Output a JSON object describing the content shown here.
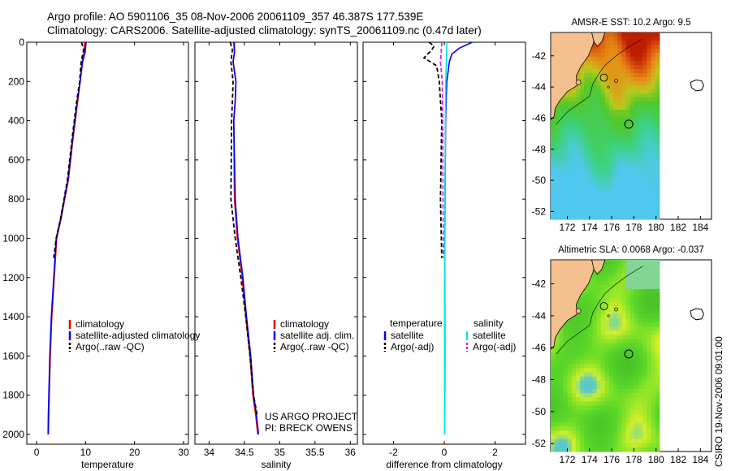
{
  "header": {
    "line1": "Argo profile: AO 5901106_35 08-Nov-2006 20061109_357 46.387S 177.539E",
    "line2": "Climatology: CARS2006. Satellite-adjusted climatology: synTS_20061109.nc (0.47d later)"
  },
  "side_label": "CSIRO 19-Nov-2006 09:01:00",
  "colors": {
    "red": "#e00000",
    "blue": "#0000ff",
    "black": "#000000",
    "cyan": "#00e5e5",
    "magenta": "#e020e0"
  },
  "chart_data": [
    {
      "id": "temperature",
      "type": "line",
      "title": "",
      "xlabel": "temperature",
      "ylabel": "",
      "xlim": [
        -2,
        31
      ],
      "ylim": [
        2050,
        0
      ],
      "xticks": [
        "0",
        "10",
        "20",
        "30"
      ],
      "yticks": [
        "0",
        "200",
        "400",
        "600",
        "800",
        "1000",
        "1200",
        "1400",
        "1600",
        "1800",
        "2000"
      ],
      "series": [
        {
          "name": "climatology",
          "color": "red",
          "dash": false,
          "x": [
            9.8,
            9.7,
            9.3,
            8.9,
            8.4,
            7.4,
            6.5,
            5.0,
            4.1,
            3.6,
            3.1,
            2.8,
            2.6,
            2.5,
            2.4
          ],
          "y": [
            0,
            50,
            100,
            200,
            300,
            500,
            700,
            900,
            1000,
            1200,
            1400,
            1600,
            1800,
            1900,
            2000
          ]
        },
        {
          "name": "satellite-adjusted climatology",
          "color": "blue",
          "dash": false,
          "x": [
            10.1,
            9.9,
            9.4,
            8.9,
            8.3,
            7.3,
            6.4,
            4.9,
            4.0,
            3.5,
            3.0,
            2.7,
            2.5,
            2.4,
            2.35
          ],
          "y": [
            0,
            50,
            100,
            200,
            300,
            500,
            700,
            900,
            1000,
            1200,
            1400,
            1600,
            1800,
            1900,
            2000
          ]
        },
        {
          "name": "Argo(..raw -QC)",
          "color": "black",
          "dash": true,
          "x": [
            9.2,
            9.6,
            9.1,
            8.8,
            8.2,
            7.2,
            6.3,
            4.9,
            4.0,
            3.5
          ],
          "y": [
            0,
            40,
            100,
            200,
            300,
            500,
            700,
            900,
            1000,
            1100
          ]
        }
      ],
      "legend": {
        "placement": "bottom-left",
        "entries": [
          "climatology",
          "satellite-adjusted climatology",
          "Argo(..raw -QC)"
        ]
      }
    },
    {
      "id": "salinity",
      "type": "line",
      "xlabel": "salinity",
      "xlim": [
        33.8,
        36.1
      ],
      "ylim": [
        2050,
        0
      ],
      "xticks": [
        "34",
        "34.5",
        "35",
        "35.5",
        "36"
      ],
      "yticks": [],
      "series": [
        {
          "name": "climatology",
          "color": "red",
          "dash": false,
          "x": [
            34.36,
            34.36,
            34.34,
            34.38,
            34.37,
            34.35,
            34.36,
            34.4,
            34.47,
            34.52,
            34.58,
            34.62,
            34.66,
            34.69
          ],
          "y": [
            0,
            50,
            100,
            200,
            300,
            400,
            800,
            1000,
            1200,
            1400,
            1600,
            1800,
            1900,
            2000
          ]
        },
        {
          "name": "satellite adj. clim.",
          "color": "blue",
          "dash": false,
          "x": [
            34.35,
            34.36,
            34.34,
            34.38,
            34.37,
            34.35,
            34.37,
            34.41,
            34.48,
            34.53,
            34.59,
            34.63,
            34.67,
            34.7
          ],
          "y": [
            0,
            50,
            100,
            200,
            300,
            400,
            800,
            1000,
            1200,
            1400,
            1600,
            1800,
            1900,
            2000
          ]
        },
        {
          "name": "Argo(..raw -QC)",
          "color": "black",
          "dash": true,
          "x": [
            34.3,
            34.33,
            34.31,
            34.34,
            34.33,
            34.32,
            34.31,
            34.37,
            34.45,
            34.52,
            34.58,
            34.63,
            34.68
          ],
          "y": [
            0,
            40,
            100,
            200,
            300,
            400,
            800,
            1000,
            1200,
            1400,
            1600,
            1800,
            1900
          ]
        }
      ],
      "legend": {
        "placement": "bottom-left",
        "entries": [
          "climatology",
          "satellite adj. clim.",
          "Argo(..raw -QC)"
        ]
      },
      "annotations": [
        "US ARGO PROJECT",
        "PI: BRECK OWENS"
      ]
    },
    {
      "id": "difference",
      "type": "line",
      "xlabel": "difference from climatology",
      "xlim": [
        -3.2,
        3.2
      ],
      "ylim": [
        2050,
        0
      ],
      "xticks": [
        "-2",
        "0",
        "2"
      ],
      "yticks": [],
      "series": [
        {
          "name": "temperature satellite",
          "color": "blue",
          "dash": false,
          "x": [
            1.1,
            0.6,
            0.3,
            0.2,
            0.1,
            0.05,
            0.03,
            0.02,
            0.02,
            0.01
          ],
          "y": [
            0,
            30,
            60,
            100,
            200,
            400,
            800,
            1200,
            1600,
            2000
          ]
        },
        {
          "name": "salinity satellite",
          "color": "cyan",
          "dash": false,
          "x": [
            0.1,
            0.08,
            0.06,
            0.04,
            0.03,
            0.02,
            0.01,
            0.01
          ],
          "y": [
            0,
            100,
            200,
            400,
            800,
            1200,
            1600,
            2000
          ]
        },
        {
          "name": "temperature Argo(-adj)",
          "color": "black",
          "dash": true,
          "x": [
            -0.6,
            -0.4,
            -0.5,
            -0.8,
            -0.3,
            -0.2,
            -0.1,
            -0.15,
            -0.1
          ],
          "y": [
            0,
            20,
            40,
            80,
            120,
            200,
            400,
            800,
            1100
          ]
        },
        {
          "name": "salinity Argo(-adj)",
          "color": "magenta",
          "dash": true,
          "x": [
            -0.1,
            -0.12,
            -0.15,
            -0.08,
            -0.06,
            -0.05,
            -0.03
          ],
          "y": [
            0,
            50,
            100,
            200,
            400,
            800,
            1100
          ]
        }
      ],
      "legend": {
        "placement": "bottom",
        "col1_title": "temperature",
        "col2_title": "salinity",
        "entries": [
          "satellite",
          "Argo(-adj)",
          "satellite",
          "Argo(-adj)"
        ]
      }
    },
    {
      "id": "sst_map",
      "type": "heatmap",
      "title": "AMSR-E SST: 10.2 Argo: 9.5",
      "xlim": [
        170.5,
        185
      ],
      "ylim": [
        -52.5,
        -40.5
      ],
      "xticks": [
        "172",
        "174",
        "176",
        "178",
        "180",
        "182",
        "184"
      ],
      "yticks": [
        "-42",
        "-44",
        "-46",
        "-48",
        "-50",
        "-52"
      ],
      "argo_position": {
        "lon": 177.54,
        "lat": -46.39
      }
    },
    {
      "id": "sla_map",
      "type": "heatmap",
      "title": "Altimetric SLA: 0.0068 Argo: -0.037",
      "xlim": [
        170.5,
        185
      ],
      "ylim": [
        -52.5,
        -40.5
      ],
      "xticks": [
        "172",
        "174",
        "176",
        "178",
        "180",
        "182",
        "184"
      ],
      "yticks": [
        "-42",
        "-44",
        "-46",
        "-48",
        "-50",
        "-52"
      ],
      "argo_position": {
        "lon": 177.54,
        "lat": -46.39
      }
    }
  ]
}
